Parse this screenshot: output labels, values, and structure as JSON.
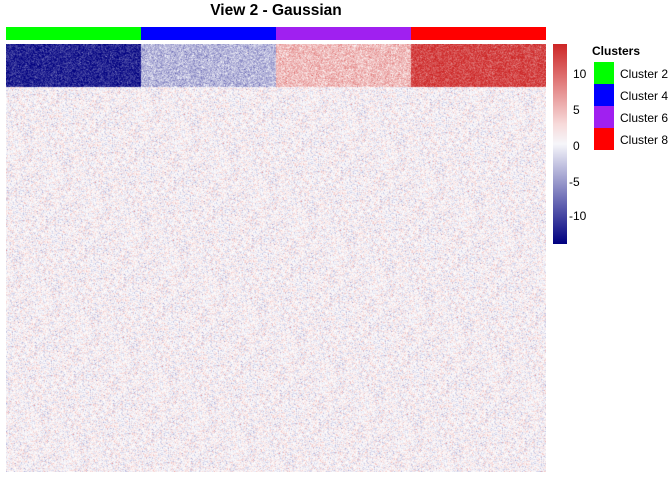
{
  "chart_data": {
    "type": "heatmap",
    "title": "View 2 - Gaussian",
    "clusters": [
      {
        "name": "Cluster 2",
        "color": "#00ff00",
        "mean_top_block": -12
      },
      {
        "name": "Cluster 4",
        "color": "#0000ff",
        "mean_top_block": -4
      },
      {
        "name": "Cluster 6",
        "color": "#a020f0",
        "mean_top_block": 4
      },
      {
        "name": "Cluster 8",
        "color": "#ff0000",
        "mean_top_block": 11
      }
    ],
    "background_mean": 0,
    "noise_sd": 1.6,
    "color_scale": {
      "min": -14,
      "max": 13,
      "low_color": "#000080",
      "mid_color": "#ffffff",
      "high_color": "#cd2626",
      "ticks": [
        10,
        5,
        0,
        -5,
        -10
      ]
    },
    "legend": {
      "title": "Clusters",
      "placement": "right"
    }
  }
}
